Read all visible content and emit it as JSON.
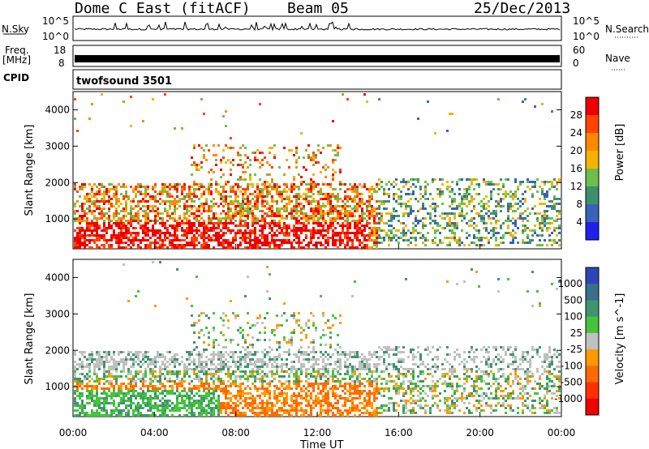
{
  "header": {
    "title": "Dome C East (fitACF)",
    "beam": "Beam 05",
    "date": "25/Dec/2013"
  },
  "nsky_panel": {
    "left_label": "N.Sky",
    "right_label": "N.Search",
    "left_ticks": [
      "10^5",
      "10^0"
    ],
    "right_ticks": [
      "10^5",
      "10^0"
    ]
  },
  "freq_panel": {
    "left_label_1": "Freq.",
    "left_label_2": "[MHz]",
    "right_label": "Nave",
    "left_ticks": [
      "18",
      "8"
    ],
    "right_ticks": [
      "60",
      "0"
    ]
  },
  "cpid_panel": {
    "label": "CPID",
    "program": "twofsound 3501"
  },
  "chart_data": [
    {
      "type": "heatmap",
      "name": "power",
      "ylabel": "Slant Range [km]",
      "yticks": [
        "4000",
        "3000",
        "2000",
        "1000"
      ],
      "ylim": [
        180,
        4500
      ],
      "colorbar_label": "Power [dB]",
      "colorbar_ticks": [
        "28",
        "24",
        "20",
        "16",
        "12",
        "8",
        "4"
      ],
      "colorbar_colors": [
        "#ee0000",
        "#ff4400",
        "#ff8800",
        "#f6b200",
        "#6ac04a",
        "#3f8f6f",
        "#3a62b8",
        "#2020e8"
      ],
      "xticks": [
        "00:00",
        "04:00",
        "08:00",
        "12:00",
        "16:00",
        "20:00",
        "00:00"
      ]
    },
    {
      "type": "heatmap",
      "name": "velocity",
      "ylabel": "Slant Range [km]",
      "yticks": [
        "4000",
        "3000",
        "2000",
        "1000"
      ],
      "ylim": [
        180,
        4500
      ],
      "colorbar_label": "Velocity [m s^-1]",
      "colorbar_ticks": [
        "1000",
        "500",
        "100",
        "25",
        "-25",
        "-100",
        "-500",
        "-1000"
      ],
      "colorbar_colors": [
        "#2c46b8",
        "#3a6e8c",
        "#3f9470",
        "#44c43c",
        "#c0c0c0",
        "#ff9a00",
        "#ff6a00",
        "#ff3000",
        "#ee0000"
      ],
      "xticks": [
        "00:00",
        "04:00",
        "08:00",
        "12:00",
        "16:00",
        "20:00",
        "00:00"
      ],
      "xlabel": "Time UT"
    }
  ]
}
